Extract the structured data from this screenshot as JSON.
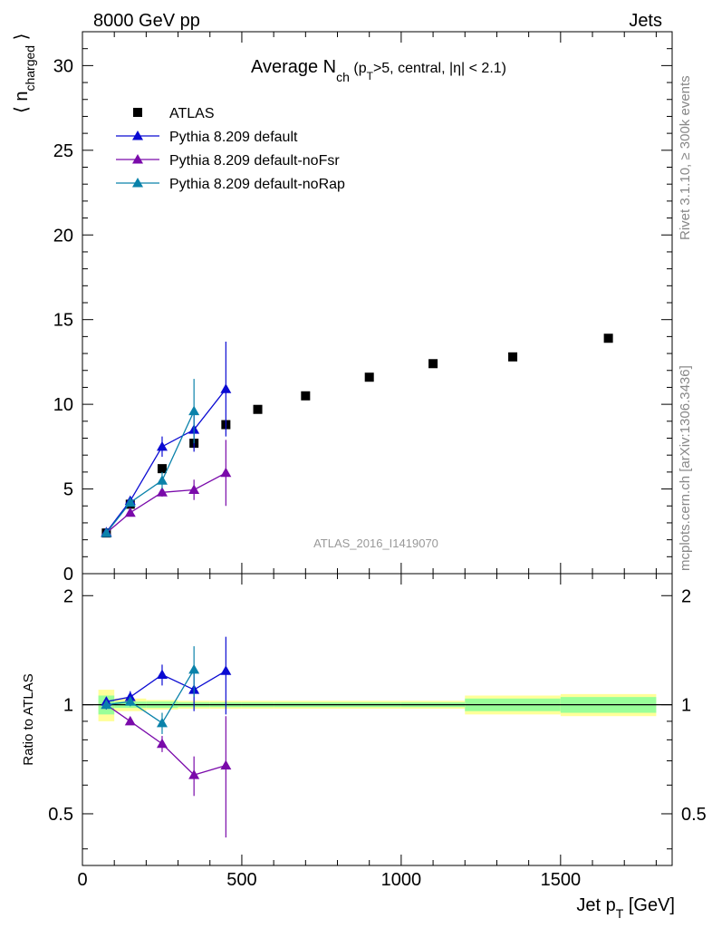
{
  "header": {
    "left": "8000 GeV pp",
    "right": "Jets"
  },
  "side_labels": {
    "rivet": "Rivet 3.1.10, ≥ 300k events",
    "mcplots": "mcplots.cern.ch [arXiv:1306.3436]"
  },
  "watermark": "ATLAS_2016_I1419070",
  "title": {
    "main": "Average N",
    "sub": "ch",
    "rest1": " (p",
    "rest_sub": "T",
    "rest2": ">5, central, |η| < 2.1)"
  },
  "ylabel_main": {
    "prefix": "⟨ n",
    "sub": "charged",
    "suffix": " ⟩"
  },
  "ylabel_ratio": "Ratio to ATLAS",
  "xlabel": {
    "main": "Jet p",
    "sub": "T",
    "unit": " [GeV]"
  },
  "colors": {
    "ATLAS": "#000000",
    "default": "#0a0ad2",
    "noFsr": "#7a0aaa",
    "noRap": "#0a82aa",
    "band_inner": "#99ff99",
    "band_outer": "#ffff99"
  },
  "chart_data": [
    {
      "type": "scatter",
      "xlim": [
        0,
        1850
      ],
      "ylim": [
        0,
        32
      ],
      "yticks": [
        0,
        5,
        10,
        15,
        20,
        25,
        30
      ],
      "legend_position": "top-left",
      "series": [
        {
          "name": "ATLAS",
          "key": "ATLAS",
          "marker": "square",
          "x": [
            75,
            150,
            250,
            350,
            450,
            550,
            700,
            900,
            1100,
            1350,
            1650
          ],
          "y": [
            2.4,
            4.1,
            6.2,
            7.7,
            8.8,
            9.7,
            10.5,
            11.6,
            12.4,
            12.8,
            13.9
          ],
          "err": [
            0,
            0,
            0,
            0,
            0,
            0,
            0,
            0,
            0,
            0,
            0
          ]
        },
        {
          "name": "Pythia 8.209 default",
          "key": "default",
          "marker": "triangle",
          "x": [
            75,
            150,
            250,
            350,
            450
          ],
          "y": [
            2.45,
            4.3,
            7.5,
            8.5,
            10.9
          ],
          "err": [
            0.1,
            0.2,
            0.6,
            1.3,
            2.8
          ]
        },
        {
          "name": "Pythia 8.209 default-noFsr",
          "key": "noFsr",
          "marker": "triangle",
          "x": [
            75,
            150,
            250,
            350,
            450
          ],
          "y": [
            2.4,
            3.6,
            4.8,
            4.95,
            5.95
          ],
          "err": [
            0.1,
            0.2,
            0.25,
            0.6,
            1.95
          ]
        },
        {
          "name": "Pythia 8.209 default-noRap",
          "key": "noRap",
          "marker": "triangle",
          "x": [
            75,
            150,
            250,
            350
          ],
          "y": [
            2.4,
            4.2,
            5.5,
            9.6
          ],
          "err": [
            0.1,
            0.2,
            0.5,
            1.9
          ]
        }
      ]
    },
    {
      "type": "line",
      "ylabel": "Ratio to ATLAS",
      "xlim": [
        0,
        1850
      ],
      "ylim": [
        0.36,
        2.3
      ],
      "log_y": true,
      "yticks": [
        0.5,
        1,
        2
      ],
      "xticks": [
        0,
        500,
        1000,
        1500
      ],
      "bands": {
        "x_edges": [
          50,
          100,
          200,
          300,
          400,
          500,
          600,
          800,
          1000,
          1200,
          1500,
          1800
        ],
        "inner": [
          0.06,
          0.02,
          0.02,
          0.015,
          0.015,
          0.015,
          0.015,
          0.015,
          0.015,
          0.04,
          0.05
        ],
        "outer": [
          0.1,
          0.04,
          0.03,
          0.025,
          0.025,
          0.025,
          0.025,
          0.025,
          0.025,
          0.06,
          0.07
        ]
      },
      "series": [
        {
          "name": "Pythia 8.209 default",
          "key": "default",
          "x": [
            75,
            150,
            250,
            350,
            450
          ],
          "y": [
            1.02,
            1.05,
            1.21,
            1.1,
            1.24
          ],
          "err": [
            0.03,
            0.04,
            0.08,
            0.14,
            0.3
          ]
        },
        {
          "name": "Pythia 8.209 default-noFsr",
          "key": "noFsr",
          "x": [
            75,
            150,
            250,
            350,
            450
          ],
          "y": [
            1.0,
            0.9,
            0.78,
            0.64,
            0.68
          ],
          "err": [
            0.03,
            0.02,
            0.04,
            0.08,
            0.25
          ]
        },
        {
          "name": "Pythia 8.209 default-noRap",
          "key": "noRap",
          "x": [
            75,
            150,
            250,
            350
          ],
          "y": [
            1.0,
            1.02,
            0.89,
            1.25
          ],
          "err": [
            0.03,
            0.03,
            0.06,
            0.2
          ]
        }
      ]
    }
  ]
}
